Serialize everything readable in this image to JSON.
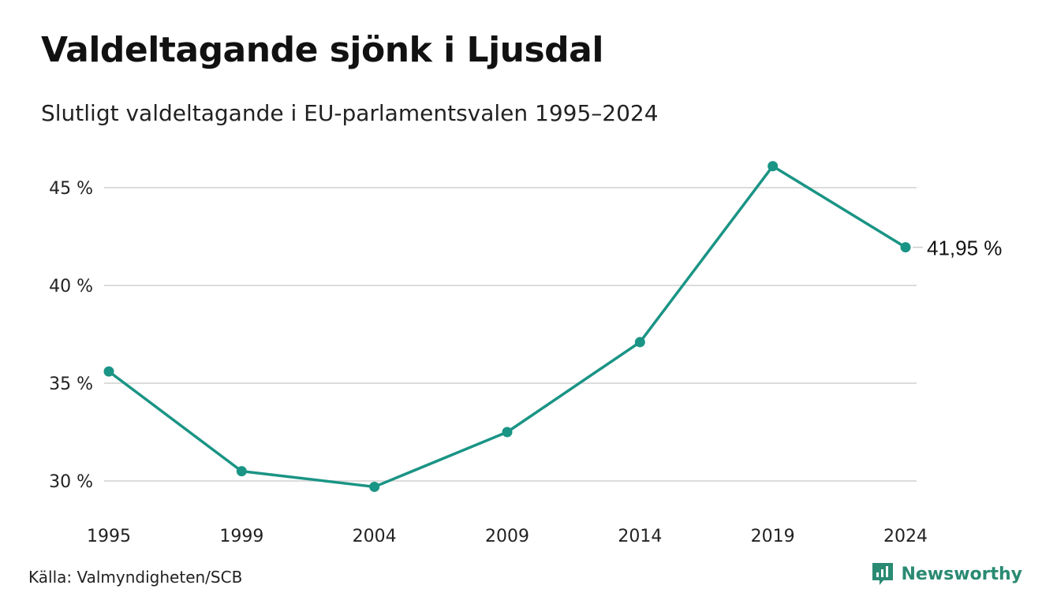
{
  "header": {
    "title": "Valdeltagande sjönk i Ljusdal",
    "subtitle": "Slutligt valdeltagande i EU-parlamentsvalen 1995–2024"
  },
  "footer": {
    "source": "Källa: Valmyndigheten/SCB",
    "brand": "Newsworthy"
  },
  "colors": {
    "line": "#1a9485",
    "grid": "#dcdcdc",
    "brand": "#2a8a72"
  },
  "icons": {
    "brand_logo": "newsworthy-logo-icon"
  },
  "chart_data": {
    "type": "line",
    "title": "Valdeltagande sjönk i Ljusdal",
    "subtitle": "Slutligt valdeltagande i EU-parlamentsvalen 1995–2024",
    "categories": [
      "1995",
      "1999",
      "2004",
      "2009",
      "2014",
      "2019",
      "2024"
    ],
    "series": [
      {
        "values": [
          35.6,
          30.5,
          29.7,
          32.5,
          37.1,
          46.1,
          41.95
        ]
      }
    ],
    "ylim": [
      28.5,
      46.5
    ],
    "yticks": [
      30,
      35,
      40,
      45
    ],
    "ytick_labels": [
      "30 %",
      "35 %",
      "40 %",
      "45 %"
    ],
    "end_label": "41,95 %",
    "grid": true,
    "legend": "none",
    "xlabel": "",
    "ylabel": ""
  }
}
